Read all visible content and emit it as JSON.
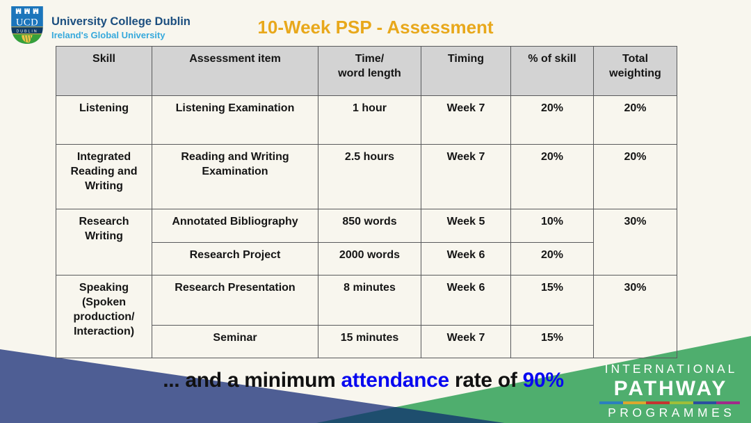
{
  "slide": {
    "title": "10-Week PSP - Assessment"
  },
  "logo": {
    "acronym": "UCD",
    "city": "DUBLIN",
    "org_name": "University College Dublin",
    "tagline": "Ireland's Global University"
  },
  "table": {
    "headers": {
      "skill": "Skill",
      "assessment_item": "Assessment item",
      "time_word_length": "Time/\nword length",
      "timing": "Timing",
      "pct_of_skill": "% of skill",
      "total_weighting": "Total\nweighting"
    },
    "rows": [
      {
        "skill": "Listening",
        "item": "Listening Examination",
        "time": "1 hour",
        "timing": "Week 7",
        "pct": "20%",
        "total": "20%"
      },
      {
        "skill": "Integrated Reading and Writing",
        "item": "Reading and Writing Examination",
        "time": "2.5 hours",
        "timing": "Week 7",
        "pct": "20%",
        "total": "20%"
      },
      {
        "skill": "Research Writing",
        "item": "Annotated Bibliography",
        "time": "850 words",
        "timing": "Week 5",
        "pct": "10%",
        "total": "30%"
      },
      {
        "item": "Research Project",
        "time": "2000 words",
        "timing": "Week 6",
        "pct": "20%"
      },
      {
        "skill": "Speaking (Spoken production/ Interaction)",
        "item": "Research Presentation",
        "time": "8 minutes",
        "timing": "Week 6",
        "pct": "15%",
        "total": "30%"
      },
      {
        "item": "Seminar",
        "time": "15 minutes",
        "timing": "Week 7",
        "pct": "15%"
      }
    ]
  },
  "caption": {
    "part1": "... and a minimum ",
    "highlight1": "attendance",
    "part2": " rate of ",
    "highlight2": "90%"
  },
  "footer_brand": {
    "line1": "INTERNATIONAL",
    "line2": "PATHWAY",
    "line3": "PROGRAMMES",
    "bar_colors": [
      "#2B7FBE",
      "#DCA72E",
      "#C43430",
      "#9FBE3A",
      "#2B4FA0",
      "#A02B8A"
    ]
  },
  "colors": {
    "background": "#F8F6EE",
    "accent_blue": "#0808F0",
    "title_gold": "#E8A81B",
    "header_gray": "#D3D3D3",
    "border_gray": "#58595B",
    "slate_triangle": "#4E5E94",
    "green_triangle": "#4FAE6E",
    "overlap_triangle": "#1E4E6E"
  }
}
